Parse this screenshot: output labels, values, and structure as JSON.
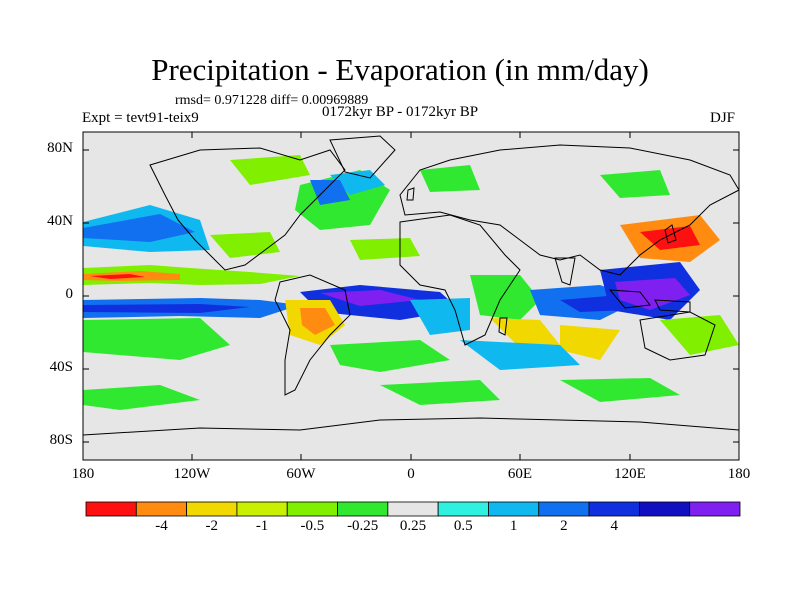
{
  "title": "Precipitation - Evaporation (in mm/day)",
  "stats_line": "rmsd= 0.971228 diff= 0.00969889",
  "experiment": "Expt = tevt91-teix9",
  "period": "0172kyr BP - 0172kyr BP",
  "season": "DJF",
  "lat_labels": [
    "80N",
    "40N",
    "0",
    "40S",
    "80S"
  ],
  "lon_labels": [
    "180",
    "120W",
    "60W",
    "0",
    "60E",
    "120E",
    "180"
  ],
  "colorbar": {
    "colors": [
      "#ff1010",
      "#ff8c10",
      "#f0d800",
      "#c8f000",
      "#80f000",
      "#30e830",
      "#e6e6e6",
      "#30f0e0",
      "#10b8f0",
      "#1070f0",
      "#1030e0",
      "#1010c0",
      "#8020f0"
    ],
    "labels": [
      "-4",
      "-2",
      "-1",
      "-0.5",
      "-0.25",
      "0.25",
      "0.5",
      "1",
      "2",
      "4"
    ]
  },
  "colors": {
    "land_sea_background": "#e6e6e6",
    "coastline": "#000000"
  }
}
